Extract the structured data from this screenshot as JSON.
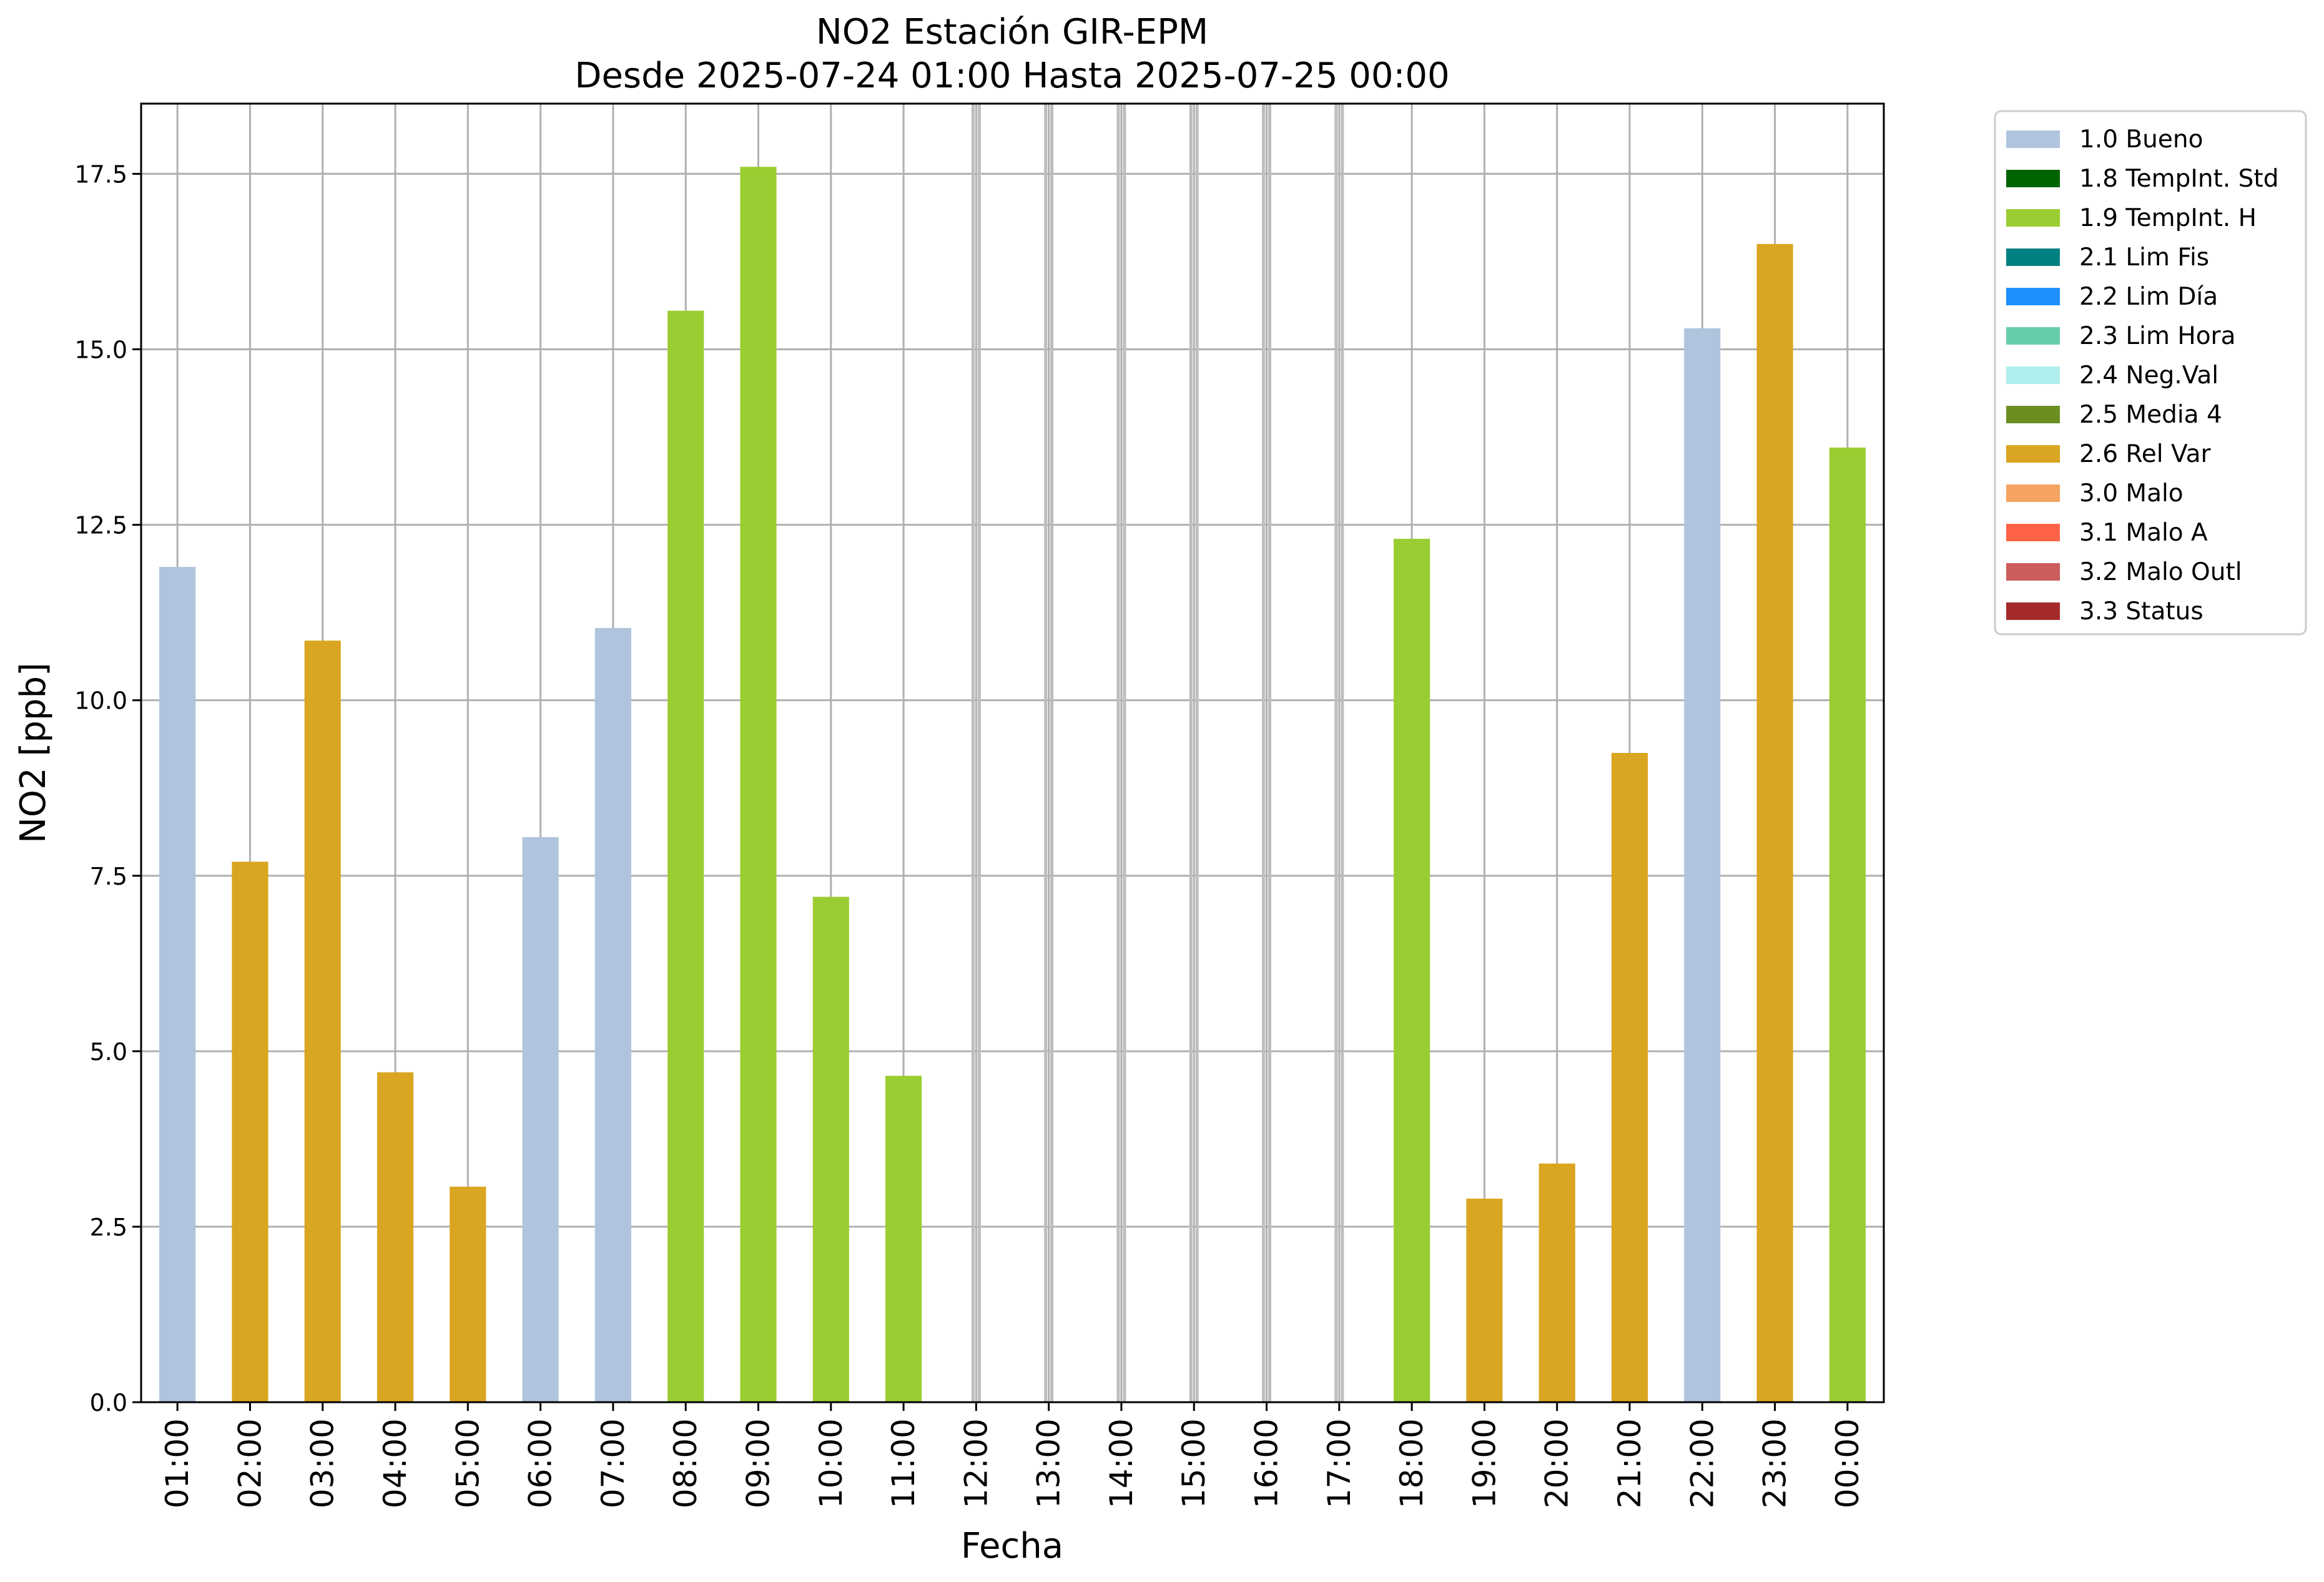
{
  "chart_data": {
    "type": "bar",
    "title": "NO2 Estación GIR-EPM",
    "subtitle": "Desde 2025-07-24 01:00 Hasta 2025-07-25 00:00",
    "xlabel": "Fecha",
    "ylabel": "NO2 [ppb]",
    "ylim": [
      0,
      18.5
    ],
    "yticks": [
      0.0,
      2.5,
      5.0,
      7.5,
      10.0,
      12.5,
      15.0,
      17.5
    ],
    "ytick_labels": [
      "0.0",
      "2.5",
      "5.0",
      "7.5",
      "10.0",
      "12.5",
      "15.0",
      "17.5"
    ],
    "grid": true,
    "legend_position": "outside-top-right",
    "categories": [
      "01:00",
      "02:00",
      "03:00",
      "04:00",
      "05:00",
      "06:00",
      "07:00",
      "08:00",
      "09:00",
      "10:00",
      "11:00",
      "12:00",
      "13:00",
      "14:00",
      "15:00",
      "16:00",
      "17:00",
      "18:00",
      "19:00",
      "20:00",
      "21:00",
      "22:00",
      "23:00",
      "00:00"
    ],
    "values": [
      11.9,
      7.7,
      10.85,
      4.7,
      3.07,
      8.05,
      11.03,
      15.55,
      17.6,
      7.2,
      4.65,
      null,
      null,
      null,
      null,
      null,
      null,
      12.3,
      2.9,
      3.4,
      9.25,
      15.3,
      16.5,
      13.6
    ],
    "flags": [
      "1.0 Bueno",
      "2.6 Rel Var",
      "2.6 Rel Var",
      "2.6 Rel Var",
      "2.6 Rel Var",
      "1.0 Bueno",
      "1.0 Bueno",
      "1.9 TempInt. H",
      "1.9 TempInt. H",
      "1.9 TempInt. H",
      "1.9 TempInt. H",
      null,
      null,
      null,
      null,
      null,
      null,
      "1.9 TempInt. H",
      "2.6 Rel Var",
      "2.6 Rel Var",
      "2.6 Rel Var",
      "1.0 Bueno",
      "2.6 Rel Var",
      "1.9 TempInt. H"
    ],
    "legend": [
      {
        "label": "1.0 Bueno",
        "color": "#b0c4de"
      },
      {
        "label": "1.8 TempInt. Std",
        "color": "#006400"
      },
      {
        "label": "1.9 TempInt. H",
        "color": "#9acd32"
      },
      {
        "label": "2.1 Lim Fis",
        "color": "#008080"
      },
      {
        "label": "2.2 Lim Día",
        "color": "#1e90ff"
      },
      {
        "label": "2.3 Lim Hora",
        "color": "#66cdaa"
      },
      {
        "label": "2.4 Neg.Val",
        "color": "#afeeee"
      },
      {
        "label": "2.5 Media 4",
        "color": "#6b8e23"
      },
      {
        "label": "2.6 Rel Var",
        "color": "#daa520"
      },
      {
        "label": "3.0 Malo",
        "color": "#f4a460"
      },
      {
        "label": "3.1 Malo A",
        "color": "#ff6347"
      },
      {
        "label": "3.2 Malo Outl",
        "color": "#cd5c5c"
      },
      {
        "label": "3.3 Status",
        "color": "#a52a2a"
      }
    ]
  }
}
